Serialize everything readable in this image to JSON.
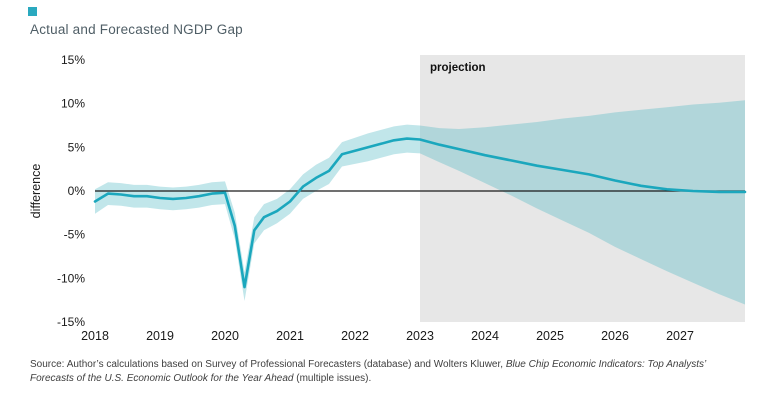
{
  "chart_data": {
    "type": "line",
    "title": "Actual and Forecasted NGDP Gap",
    "ylabel": "difference",
    "xlim": [
      2018,
      2028
    ],
    "ylim": [
      -15,
      15
    ],
    "y_ticks": [
      15,
      10,
      5,
      0,
      -5,
      -10,
      -15
    ],
    "y_tick_labels": [
      "15%",
      "10%",
      "5%",
      "0%",
      "-5%",
      "-10%",
      "-15%"
    ],
    "x_ticks": [
      2018,
      2019,
      2020,
      2021,
      2022,
      2023,
      2024,
      2025,
      2026,
      2027
    ],
    "projection_start": 2023,
    "projection_label": "projection",
    "grid": false,
    "legend": "none",
    "colors": {
      "line": "#1ba7bd",
      "band": "#4db8c4",
      "band_opacity": 0.35,
      "projection_bg": "#e7e7e7",
      "zero_line": "#1a1a1a",
      "tick_text": "#1a1a1a",
      "title_text": "#4f5e66"
    },
    "x": [
      2018.0,
      2018.2,
      2018.4,
      2018.6,
      2018.8,
      2019.0,
      2019.2,
      2019.4,
      2019.6,
      2019.8,
      2020.0,
      2020.15,
      2020.3,
      2020.45,
      2020.6,
      2020.8,
      2021.0,
      2021.2,
      2021.4,
      2021.6,
      2021.8,
      2022.0,
      2022.2,
      2022.4,
      2022.6,
      2022.8,
      2023.0,
      2023.3,
      2023.6,
      2024.0,
      2024.4,
      2024.8,
      2025.2,
      2025.6,
      2026.0,
      2026.4,
      2026.8,
      2027.2,
      2027.6,
      2028.0
    ],
    "line": [
      -1.2,
      -0.3,
      -0.4,
      -0.6,
      -0.6,
      -0.8,
      -0.9,
      -0.8,
      -0.6,
      -0.3,
      -0.2,
      -4.0,
      -11.0,
      -4.5,
      -3.0,
      -2.3,
      -1.2,
      0.5,
      1.5,
      2.3,
      4.2,
      4.6,
      5.0,
      5.4,
      5.8,
      6.0,
      5.9,
      5.3,
      4.8,
      4.1,
      3.5,
      2.9,
      2.4,
      1.9,
      1.2,
      0.6,
      0.2,
      0.0,
      -0.1,
      -0.1
    ],
    "band_upper": [
      0.2,
      1.0,
      0.9,
      0.7,
      0.7,
      0.5,
      0.4,
      0.5,
      0.7,
      1.0,
      1.1,
      -2.5,
      -9.3,
      -3.0,
      -1.5,
      -0.9,
      0.2,
      1.9,
      3.0,
      3.8,
      5.6,
      6.1,
      6.6,
      7.0,
      7.4,
      7.6,
      7.5,
      7.2,
      7.1,
      7.3,
      7.6,
      7.9,
      8.3,
      8.6,
      9.0,
      9.3,
      9.6,
      9.9,
      10.1,
      10.4
    ],
    "band_lower": [
      -2.6,
      -1.6,
      -1.7,
      -1.9,
      -1.9,
      -2.1,
      -2.2,
      -2.1,
      -1.9,
      -1.6,
      -1.5,
      -5.5,
      -12.6,
      -6.0,
      -4.5,
      -3.7,
      -2.6,
      -0.9,
      0.0,
      0.8,
      2.8,
      3.1,
      3.4,
      3.8,
      4.2,
      4.4,
      4.3,
      3.3,
      2.3,
      0.9,
      -0.5,
      -2.0,
      -3.4,
      -4.8,
      -6.4,
      -7.8,
      -9.2,
      -10.5,
      -11.8,
      -13.0
    ]
  },
  "source": {
    "part1": "Source: Author’s calculations based on Survey of Professional Forecasters (database) and Wolters Kluwer, ",
    "part2_italic": "Blue Chip Economic Indicators: Top Analysts’ Forecasts of the U.S. Economic Outlook for the Year Ahead",
    "part3": " (multiple issues)."
  }
}
